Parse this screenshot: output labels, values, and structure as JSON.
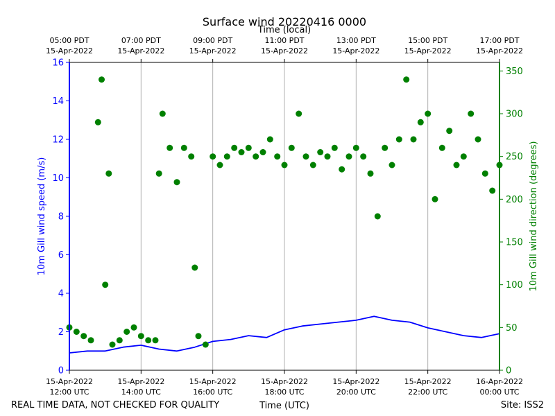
{
  "chart_data": {
    "type": "line+scatter",
    "title": "Surface wind 20220416 0000",
    "top_xlabel": "Time (local)",
    "xlabel": "Time (UTC)",
    "ylabel_left": "10m Gill wind speed (m/s)",
    "ylabel_right": "10m Gill wind direction (degrees)",
    "ylim_left": [
      0,
      16
    ],
    "ylim_right": [
      0,
      360
    ],
    "xlim_hours_utc": [
      12,
      24
    ],
    "grid_vertical": true,
    "left_ticks": [
      "0",
      "2",
      "4",
      "6",
      "8",
      "10",
      "12",
      "14",
      "16"
    ],
    "right_ticks": [
      "0",
      "50",
      "100",
      "150",
      "200",
      "250",
      "300",
      "350"
    ],
    "bottom_ticks": [
      {
        "l1": "15-Apr-2022",
        "l2": "12:00 UTC"
      },
      {
        "l1": "15-Apr-2022",
        "l2": "14:00 UTC"
      },
      {
        "l1": "15-Apr-2022",
        "l2": "16:00 UTC"
      },
      {
        "l1": "15-Apr-2022",
        "l2": "18:00 UTC"
      },
      {
        "l1": "15-Apr-2022",
        "l2": "20:00 UTC"
      },
      {
        "l1": "15-Apr-2022",
        "l2": "22:00 UTC"
      },
      {
        "l1": "16-Apr-2022",
        "l2": "00:00 UTC"
      }
    ],
    "top_ticks": [
      {
        "l1": "05:00 PDT",
        "l2": "15-Apr-2022"
      },
      {
        "l1": "07:00 PDT",
        "l2": "15-Apr-2022"
      },
      {
        "l1": "09:00 PDT",
        "l2": "15-Apr-2022"
      },
      {
        "l1": "11:00 PDT",
        "l2": "15-Apr-2022"
      },
      {
        "l1": "13:00 PDT",
        "l2": "15-Apr-2022"
      },
      {
        "l1": "15:00 PDT",
        "l2": "15-Apr-2022"
      },
      {
        "l1": "17:00 PDT",
        "l2": "15-Apr-2022"
      }
    ],
    "series": [
      {
        "name": "Wind speed",
        "axis": "left",
        "style": "line",
        "color": "#0000ff",
        "x": [
          12.0,
          12.5,
          13.0,
          13.5,
          14.0,
          14.5,
          15.0,
          15.5,
          16.0,
          16.5,
          17.0,
          17.5,
          18.0,
          18.5,
          19.0,
          19.5,
          20.0,
          20.5,
          21.0,
          21.5,
          22.0,
          22.5,
          23.0,
          23.5,
          24.0
        ],
        "values": [
          0.9,
          1.0,
          1.0,
          1.2,
          1.3,
          1.1,
          1.0,
          1.2,
          1.5,
          1.6,
          1.8,
          1.7,
          2.1,
          2.3,
          2.4,
          2.5,
          2.6,
          2.8,
          2.6,
          2.5,
          2.2,
          2.0,
          1.8,
          1.7,
          1.9
        ]
      },
      {
        "name": "Wind direction",
        "axis": "right",
        "style": "scatter",
        "color": "#008000",
        "x": [
          12.0,
          12.2,
          12.4,
          12.6,
          12.8,
          12.9,
          13.0,
          13.1,
          13.2,
          13.4,
          13.6,
          13.8,
          14.0,
          14.2,
          14.4,
          14.5,
          14.6,
          14.8,
          15.0,
          15.2,
          15.4,
          15.5,
          15.6,
          15.8,
          16.0,
          16.2,
          16.4,
          16.6,
          16.8,
          17.0,
          17.2,
          17.4,
          17.6,
          17.8,
          18.0,
          18.2,
          18.4,
          18.6,
          18.8,
          19.0,
          19.2,
          19.4,
          19.6,
          19.8,
          20.0,
          20.2,
          20.4,
          20.6,
          20.8,
          21.0,
          21.2,
          21.4,
          21.6,
          21.8,
          22.0,
          22.2,
          22.4,
          22.6,
          22.8,
          23.0,
          23.2,
          23.4,
          23.6,
          23.8,
          24.0
        ],
        "values": [
          50,
          45,
          40,
          35,
          290,
          340,
          100,
          230,
          30,
          35,
          45,
          50,
          40,
          35,
          35,
          230,
          300,
          260,
          220,
          260,
          250,
          120,
          40,
          30,
          250,
          240,
          250,
          260,
          255,
          260,
          250,
          255,
          270,
          250,
          240,
          260,
          300,
          250,
          240,
          255,
          250,
          260,
          235,
          250,
          260,
          250,
          230,
          180,
          260,
          240,
          270,
          340,
          270,
          290,
          300,
          200,
          260,
          280,
          240,
          250,
          300,
          270,
          230,
          210,
          240
        ]
      }
    ]
  },
  "footer": {
    "left_note": "REAL TIME DATA, NOT CHECKED FOR QUALITY",
    "site": "Site: ISS2"
  },
  "colors": {
    "speed": "#0000ff",
    "direction": "#008000",
    "axes": "#000000",
    "grid": "#b0b0b0"
  }
}
